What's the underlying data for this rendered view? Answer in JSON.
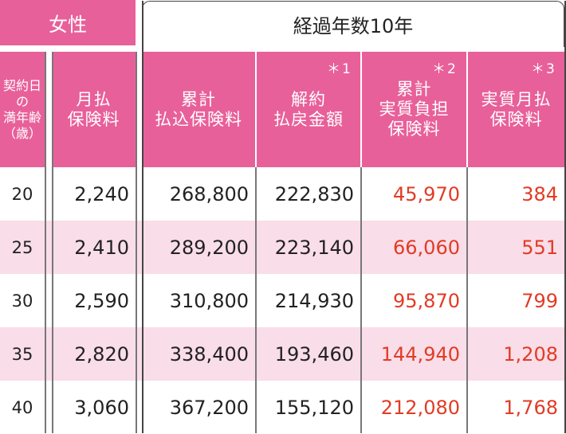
{
  "gender_label": "女性",
  "period_label": "経過年数10年",
  "headers": {
    "age": [
      "契約日",
      "の",
      "満年齢",
      "（歳）"
    ],
    "monthly": [
      "月払",
      "保険料"
    ],
    "total_paid": [
      "累計",
      "払込保険料"
    ],
    "surrender": [
      "解約",
      "払戻金額"
    ],
    "net_burden": [
      "累計",
      "実質負担",
      "保険料"
    ],
    "net_monthly": [
      "実質月払",
      "保険料"
    ]
  },
  "marks": {
    "surrender": "＊1",
    "net_burden": "＊2",
    "net_monthly": "＊3"
  },
  "rows": [
    {
      "age": "20",
      "monthly": "2,240",
      "total_paid": "268,800",
      "surrender": "222,830",
      "net_burden": "45,970",
      "net_monthly": "384"
    },
    {
      "age": "25",
      "monthly": "2,410",
      "total_paid": "289,200",
      "surrender": "223,140",
      "net_burden": "66,060",
      "net_monthly": "551"
    },
    {
      "age": "30",
      "monthly": "2,590",
      "total_paid": "310,800",
      "surrender": "214,930",
      "net_burden": "95,870",
      "net_monthly": "799"
    },
    {
      "age": "35",
      "monthly": "2,820",
      "total_paid": "338,400",
      "surrender": "193,460",
      "net_burden": "144,940",
      "net_monthly": "1,208"
    },
    {
      "age": "40",
      "monthly": "3,060",
      "total_paid": "367,200",
      "surrender": "155,120",
      "net_burden": "212,080",
      "net_monthly": "1,768"
    }
  ],
  "colors": {
    "header_pink": "#e8609a",
    "row_pink": "#f9dde8",
    "accent_red": "#e23b25"
  }
}
